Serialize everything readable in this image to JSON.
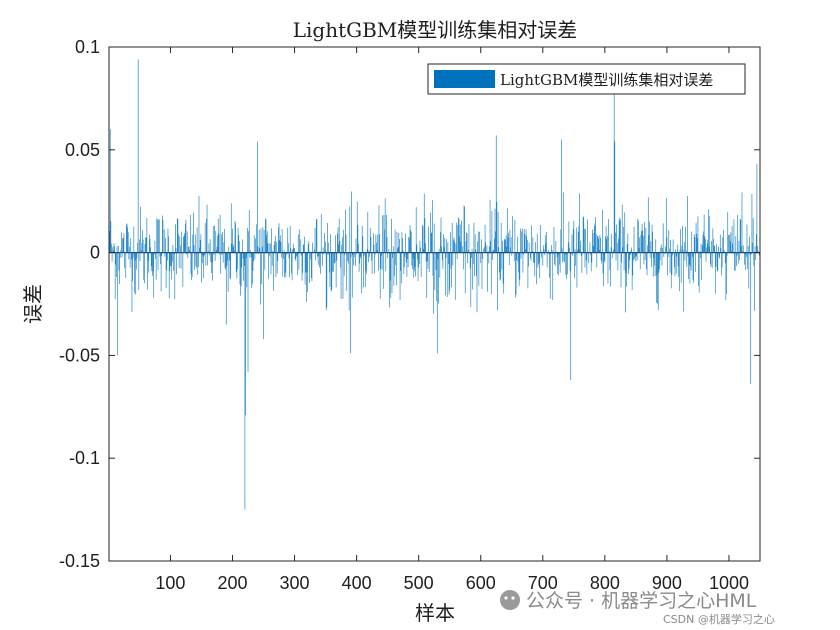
{
  "chart_data": {
    "type": "bar",
    "title": "LightGBM模型训练集相对误差",
    "xlabel": "样本",
    "ylabel": "误差",
    "xlim": [
      1,
      1050
    ],
    "ylim": [
      -0.15,
      0.1
    ],
    "xticks": [
      100,
      200,
      300,
      400,
      500,
      600,
      700,
      800,
      900,
      1000
    ],
    "yticks": [
      0.1,
      0.05,
      0,
      -0.05,
      -0.1,
      -0.15
    ],
    "ytick_labels": [
      "0.1",
      "0.05",
      "0",
      "-0.05",
      "-0.1",
      "-0.15"
    ],
    "grid": false,
    "legend_position": "top-right",
    "series": [
      {
        "name": "LightGBM模型训练集相对误差",
        "color": "#0072BD",
        "n_samples": 1050,
        "notable_values": [
          {
            "x": 1,
            "y": 0.071
          },
          {
            "x": 3,
            "y": 0.06
          },
          {
            "x": 15,
            "y": -0.05
          },
          {
            "x": 48,
            "y": 0.094
          },
          {
            "x": 190,
            "y": -0.035
          },
          {
            "x": 220,
            "y": -0.125
          },
          {
            "x": 221,
            "y": -0.079
          },
          {
            "x": 225,
            "y": -0.058
          },
          {
            "x": 240,
            "y": 0.054
          },
          {
            "x": 250,
            "y": -0.042
          },
          {
            "x": 390,
            "y": -0.049
          },
          {
            "x": 530,
            "y": -0.049
          },
          {
            "x": 625,
            "y": 0.057
          },
          {
            "x": 730,
            "y": 0.055
          },
          {
            "x": 745,
            "y": -0.062
          },
          {
            "x": 815,
            "y": 0.078
          },
          {
            "x": 816,
            "y": 0.054
          },
          {
            "x": 1035,
            "y": -0.064
          },
          {
            "x": 1045,
            "y": 0.043
          }
        ],
        "typical_range": [
          -0.03,
          0.03
        ]
      }
    ]
  },
  "watermark": {
    "line1": "公众号 · 机器学习之心HML",
    "line2": "CSDN @机器学习之心"
  }
}
